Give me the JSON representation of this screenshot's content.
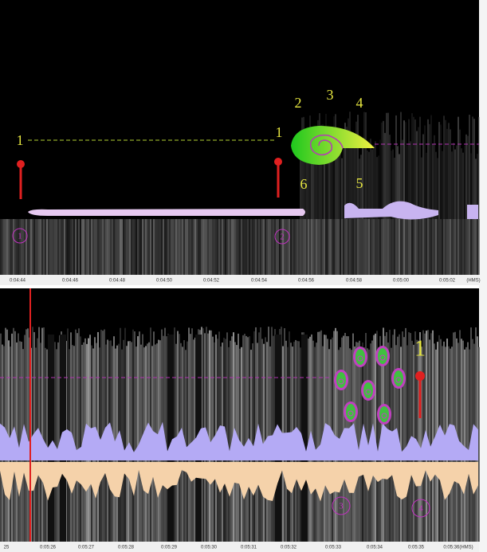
{
  "panels": [
    {
      "annotations": {
        "dash_start": "1",
        "dash_end": "1",
        "spiral_points": [
          "2",
          "3",
          "4",
          "5",
          "6"
        ],
        "circled": [
          "1",
          "2"
        ]
      },
      "time_labels": [
        "0:04:44",
        "0:04:46",
        "0:04:48",
        "0:04:50",
        "0:04:52",
        "0:04:54",
        "0:04:56",
        "0:04:58",
        "0:05:00",
        "0:05:02",
        "(HMS)"
      ]
    },
    {
      "annotations": {
        "pin_label": "1",
        "circled": [
          "3",
          "4"
        ]
      },
      "time_labels": [
        "25",
        "0:05:26",
        "0:05:27",
        "0:05:28",
        "0:05:29",
        "0:05:30",
        "0:05:31",
        "0:05:32",
        "0:05:33",
        "0:05:34",
        "0:05:35",
        "0:05:36(HMS)"
      ]
    }
  ]
}
